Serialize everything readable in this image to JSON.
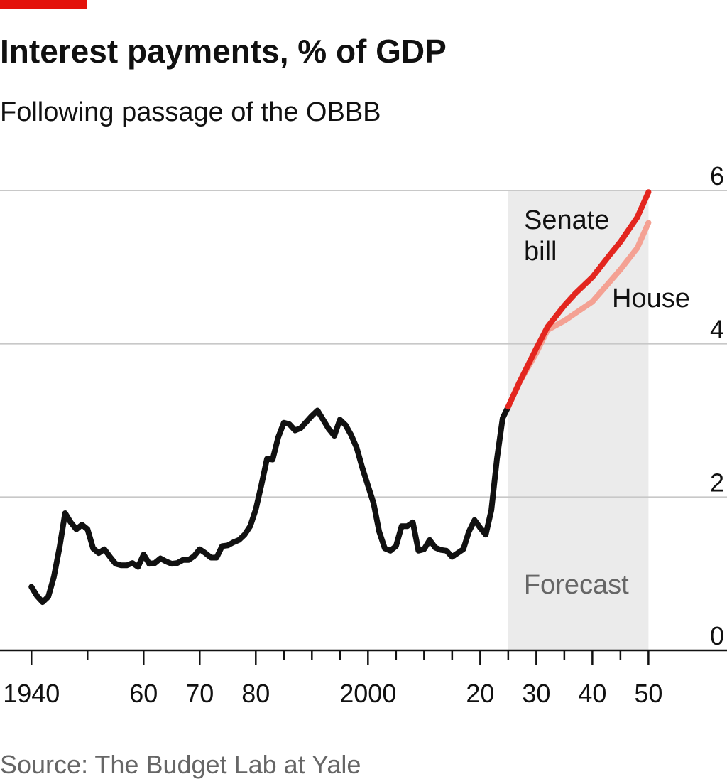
{
  "chart_data": {
    "type": "line",
    "title": "Interest payments, % of GDP",
    "subtitle": "Following passage of the OBBB",
    "source": "Source: The Budget Lab at Yale",
    "forecast": {
      "label": "Forecast",
      "start": 2025,
      "end": 2050
    },
    "series": [
      {
        "color": "#111111",
        "x": [
          1940,
          1941,
          1942,
          1943,
          1944,
          1945,
          1946,
          1947,
          1948,
          1949,
          1950,
          1951,
          1952,
          1953,
          1954,
          1955,
          1956,
          1957,
          1958,
          1959,
          1960,
          1961,
          1962,
          1963,
          1964,
          1965,
          1966,
          1967,
          1968,
          1969,
          1970,
          1971,
          1972,
          1973,
          1974,
          1975,
          1976,
          1977,
          1978,
          1979,
          1980,
          1981,
          1982,
          1983,
          1984,
          1985,
          1986,
          1987,
          1988,
          1989,
          1990,
          1991,
          1992,
          1993,
          1994,
          1995,
          1996,
          1997,
          1998,
          1999,
          2000,
          2001,
          2002,
          2003,
          2004,
          2005,
          2006,
          2007,
          2008,
          2009,
          2010,
          2011,
          2012,
          2013,
          2014,
          2015,
          2016,
          2017,
          2018,
          2019,
          2020,
          2021,
          2022,
          2023,
          2024,
          2025
        ],
        "values": [
          0.83,
          0.71,
          0.63,
          0.7,
          0.96,
          1.34,
          1.79,
          1.67,
          1.58,
          1.64,
          1.58,
          1.33,
          1.27,
          1.32,
          1.22,
          1.13,
          1.11,
          1.11,
          1.14,
          1.09,
          1.25,
          1.13,
          1.14,
          1.2,
          1.16,
          1.13,
          1.14,
          1.18,
          1.18,
          1.23,
          1.32,
          1.27,
          1.21,
          1.21,
          1.36,
          1.37,
          1.41,
          1.44,
          1.51,
          1.62,
          1.84,
          2.16,
          2.5,
          2.49,
          2.78,
          2.97,
          2.95,
          2.87,
          2.9,
          2.98,
          3.06,
          3.13,
          3.01,
          2.89,
          2.8,
          3.01,
          2.94,
          2.81,
          2.64,
          2.38,
          2.15,
          1.92,
          1.55,
          1.33,
          1.3,
          1.36,
          1.62,
          1.62,
          1.67,
          1.3,
          1.32,
          1.44,
          1.34,
          1.31,
          1.3,
          1.22,
          1.27,
          1.32,
          1.55,
          1.7,
          1.6,
          1.51,
          1.83,
          2.5,
          3.03,
          3.18
        ]
      },
      {
        "name": "House",
        "color": "#f4a193",
        "x": [
          2025,
          2027,
          2030,
          2032,
          2035,
          2037,
          2040,
          2043,
          2045,
          2048,
          2050
        ],
        "values": [
          3.18,
          3.5,
          3.88,
          4.18,
          4.3,
          4.4,
          4.55,
          4.8,
          4.97,
          5.25,
          5.58
        ]
      },
      {
        "name": "Senate bill",
        "color": "#e3261f",
        "x": [
          2025,
          2027,
          2030,
          2032,
          2035,
          2037,
          2040,
          2043,
          2045,
          2048,
          2050
        ],
        "values": [
          3.18,
          3.5,
          3.94,
          4.22,
          4.5,
          4.66,
          4.87,
          5.15,
          5.33,
          5.65,
          5.98
        ]
      }
    ],
    "xlim": [
      1934.4,
      2064
    ],
    "ylim": [
      0,
      6
    ],
    "yticks": [
      0,
      2,
      4,
      6
    ],
    "xticks": [
      {
        "value": 1940,
        "label": "1940"
      },
      {
        "value": 1960,
        "label": "60"
      },
      {
        "value": 1970,
        "label": "70"
      },
      {
        "value": 1980,
        "label": "80"
      },
      {
        "value": 2000,
        "label": "2000"
      },
      {
        "value": 2020,
        "label": "20"
      },
      {
        "value": 2030,
        "label": "30"
      },
      {
        "value": 2040,
        "label": "40"
      },
      {
        "value": 2050,
        "label": "50"
      }
    ],
    "xminorticks": [
      1950,
      1985,
      1990,
      1995,
      2005,
      2010,
      2015,
      2025,
      2035,
      2045
    ],
    "grid": true
  }
}
